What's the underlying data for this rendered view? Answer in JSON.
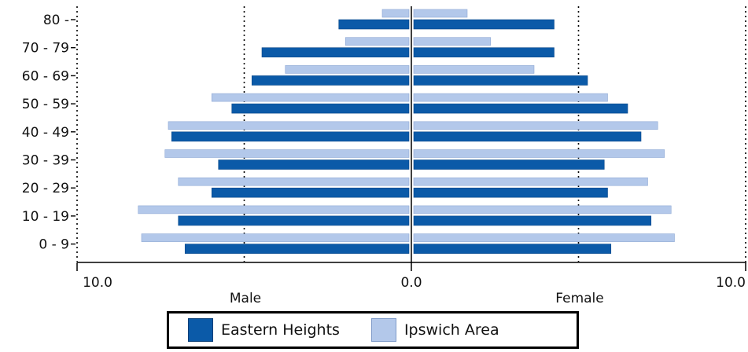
{
  "chart_data": {
    "type": "bar",
    "orientation": "horizontal",
    "layout": "population-pyramid",
    "categories": [
      "0 - 9",
      "10 - 19",
      "20 - 29",
      "30 - 39",
      "40 - 49",
      "50 - 59",
      "60 - 69",
      "70 - 79",
      "80 -"
    ],
    "series": [
      {
        "name": "Eastern Heights",
        "color": "#0b5aa8",
        "male": [
          6.7,
          6.9,
          5.9,
          5.7,
          7.1,
          5.3,
          4.7,
          4.4,
          2.1
        ],
        "female": [
          5.9,
          7.1,
          5.8,
          5.7,
          6.8,
          6.4,
          5.2,
          4.2,
          4.2
        ]
      },
      {
        "name": "Ipswich Area",
        "color": "#b3c8ea",
        "male": [
          8.0,
          8.1,
          6.9,
          7.3,
          7.2,
          5.9,
          3.7,
          1.9,
          0.8
        ],
        "female": [
          7.8,
          7.7,
          7.0,
          7.5,
          7.3,
          5.8,
          3.6,
          2.3,
          1.6
        ]
      }
    ],
    "x_ticks": [
      "10.0",
      "0.0",
      "10.0"
    ],
    "xlim": [
      -10,
      10
    ],
    "reference_lines": [
      -5,
      5,
      10
    ],
    "male_label": "Male",
    "female_label": "Female",
    "legend_position": "bottom"
  }
}
